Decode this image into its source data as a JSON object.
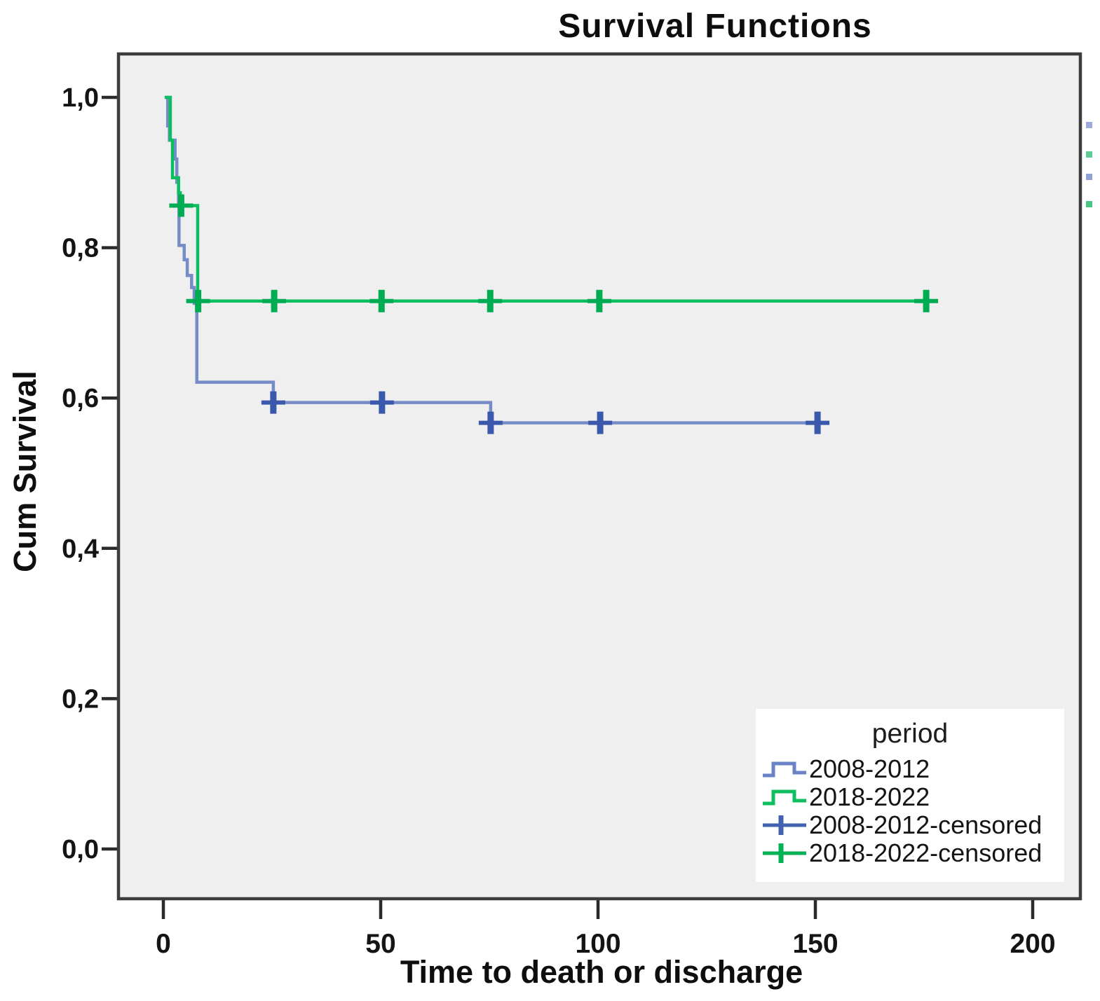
{
  "chart_data": {
    "type": "line",
    "subtype": "kaplan-meier-step-survival",
    "title": "Survival Functions",
    "grid": false,
    "plot_background": "#F0EFF0",
    "frame_color": "#3C3C3C",
    "x_axis": {
      "label": "Time to death or discharge",
      "range": [
        -10.6,
        211.5
      ],
      "ticks": [
        {
          "value": 0,
          "label": "0"
        },
        {
          "value": 50,
          "label": "50"
        },
        {
          "value": 100,
          "label": "100"
        },
        {
          "value": 150,
          "label": "150"
        },
        {
          "value": 200,
          "label": "200"
        }
      ]
    },
    "y_axis": {
      "label": "Cum Survival",
      "range": [
        -0.068,
        1.058
      ],
      "ticks": [
        {
          "value": 0.0,
          "label": "0,0"
        },
        {
          "value": 0.2,
          "label": "0,2"
        },
        {
          "value": 0.4,
          "label": "0,4"
        },
        {
          "value": 0.6,
          "label": "0,6"
        },
        {
          "value": 0.8,
          "label": "0,8"
        },
        {
          "value": 1.0,
          "label": "1,0"
        }
      ]
    },
    "series": [
      {
        "name": "2008-2012",
        "color": "#758CC7",
        "censor_color": "#3A59AC",
        "steps": [
          [
            0.5,
            1.0
          ],
          [
            1.0,
            0.962
          ],
          [
            1.4,
            0.943
          ],
          [
            2.7,
            0.918
          ],
          [
            3.1,
            0.887
          ],
          [
            3.5,
            0.856
          ],
          [
            3.6,
            0.803
          ],
          [
            4.8,
            0.784
          ],
          [
            5.5,
            0.763
          ],
          [
            6.5,
            0.747
          ],
          [
            7.1,
            0.726
          ],
          [
            7.7,
            0.621
          ],
          [
            25.3,
            0.594
          ],
          [
            75.3,
            0.567
          ],
          [
            152.5,
            0.567
          ]
        ],
        "censored": [
          [
            25.3,
            0.594
          ],
          [
            50.3,
            0.594
          ],
          [
            75.3,
            0.567
          ],
          [
            100.5,
            0.567
          ],
          [
            150.5,
            0.567
          ]
        ]
      },
      {
        "name": "2018-2022",
        "color": "#0CBE62",
        "censor_color": "#00AC52",
        "steps": [
          [
            0.3,
            1.0
          ],
          [
            1.6,
            0.943
          ],
          [
            2.1,
            0.893
          ],
          [
            3.5,
            0.873
          ],
          [
            3.9,
            0.856
          ],
          [
            7.9,
            0.729
          ],
          [
            177.5,
            0.729
          ]
        ],
        "censored": [
          [
            4.1,
            0.856
          ],
          [
            8.0,
            0.729
          ],
          [
            25.5,
            0.729
          ],
          [
            50.2,
            0.729
          ],
          [
            75.2,
            0.729
          ],
          [
            100.3,
            0.729
          ],
          [
            175.5,
            0.729
          ]
        ]
      }
    ],
    "legend": {
      "title": "period",
      "position": "bottom-right",
      "entries": [
        {
          "label": "2008-2012",
          "glyph": "step",
          "color": "#6B83C4"
        },
        {
          "label": "2018-2022",
          "glyph": "step",
          "color": "#0FBE5F"
        },
        {
          "label": "2008-2012-censored",
          "glyph": "plus",
          "color": "#4262B0"
        },
        {
          "label": "2018-2022-censored",
          "glyph": "plus",
          "color": "#00B253"
        }
      ]
    }
  },
  "edge_marks": [
    {
      "y": 174,
      "color": "#9BABDC"
    },
    {
      "y": 216,
      "color": "#5FCD92"
    },
    {
      "y": 248,
      "color": "#8FA2D6"
    },
    {
      "y": 287,
      "color": "#49C684"
    }
  ]
}
